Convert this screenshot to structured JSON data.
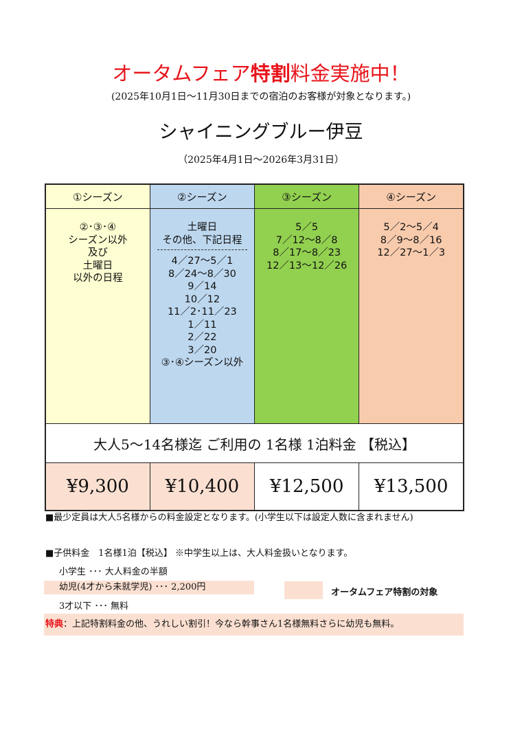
{
  "header": {
    "title_part1": "オータムフェア",
    "title_bold": "特割",
    "title_part2": "料金実施中！",
    "subtitle": "(2025年10月1日～11月30日までの宿泊のお客様が対象となります。)",
    "hotel_name": "シャイニングブルー伊豆",
    "period": "（2025年4月1日～2026年3月31日）"
  },
  "seasons": [
    {
      "label": "①シーズン",
      "dates": [
        "②･③･④",
        "シーズン以外",
        "及び",
        "土曜日",
        "以外の日程"
      ],
      "dates_after_divider": [],
      "price": "¥9,300",
      "color": "#fffed2",
      "autumn_fair": true
    },
    {
      "label": "②シーズン",
      "dates": [
        "土曜日",
        "その他、下記日程"
      ],
      "dates_after_divider": [
        "4／27～5／1",
        "8／24～8／30",
        "9／14",
        "10／12",
        "11／2･11／23",
        "1／11",
        "2／22",
        "3／20",
        "③･④シーズン以外"
      ],
      "price": "¥10,400",
      "color": "#bdd7ee",
      "autumn_fair": true
    },
    {
      "label": "③シーズン",
      "dates": [
        "5／5",
        "7／12～8／8",
        "8／17～8／23",
        "12／13～12／26"
      ],
      "dates_after_divider": [],
      "price": "¥12,500",
      "color": "#92d050",
      "autumn_fair": false
    },
    {
      "label": "④シーズン",
      "dates": [
        "5／2～5／4",
        "8／9～8／16",
        "12／27～1／3"
      ],
      "dates_after_divider": [],
      "price": "¥13,500",
      "color": "#f8cbad",
      "autumn_fair": false
    }
  ],
  "price_label": "大人5～14名様迄  ご利用の 1名様 1泊料金 【税込】",
  "notes": {
    "min_capacity": "■最少定員は大人5名様からの料金設定となります。(小学生以下は設定人数に含まれません)",
    "child_heading": "■子供料金　1名様1泊【税込】 ※中学生以上は、大人料金扱いとなります。",
    "child_rows": [
      "小学生 ･･･ 大人料金の半額",
      "幼児(4才から未就学児) ･･･ 2,200円",
      "3才以下 ･･･ 無料"
    ],
    "legend": "オータムフェア特割の対象",
    "bonus_label": "特典",
    "bonus_text": "：上記特割料金の他、うれしい割引！今なら幹事さん1名様無料さらに幼児も無料。"
  },
  "colors": {
    "accent_red": "#e8141b",
    "autumn_fair_highlight": "#fbe0d2"
  }
}
